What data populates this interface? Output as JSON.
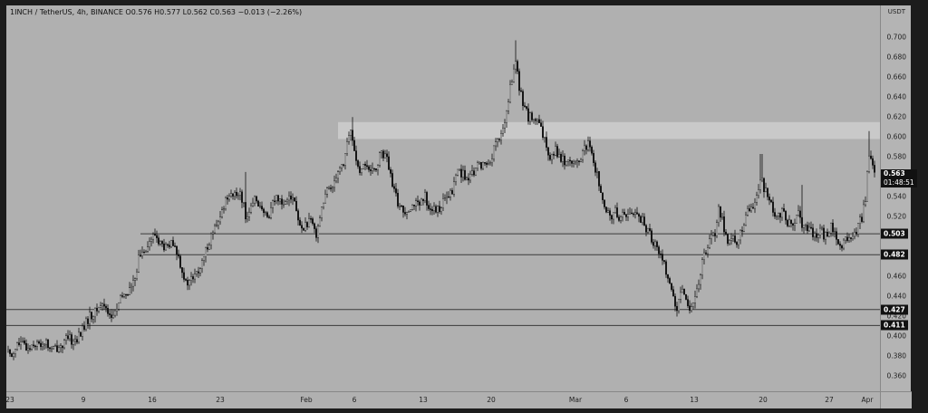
{
  "header": {
    "ticker_line": "1INCH / TetherUS, 4h, BINANCE  O0.576  H0.577  L0.562  C0.563  −0.013 (−2.26%)"
  },
  "chart_data": {
    "type": "candlestick",
    "currency": "USDT",
    "y_ticks": [
      "0.700",
      "0.680",
      "0.660",
      "0.640",
      "0.620",
      "0.600",
      "0.580",
      "0.560",
      "0.540",
      "0.520",
      "0.500",
      "0.480",
      "0.460",
      "0.440",
      "0.420",
      "0.400",
      "0.380",
      "0.360"
    ],
    "ylim": [
      0.345,
      0.732
    ],
    "x_ticks": [
      "23",
      "9",
      "16",
      "23",
      "Feb",
      "6",
      "13",
      "20",
      "Mar",
      "6",
      "13",
      "20",
      "27",
      "Apr"
    ],
    "price_path": [
      {
        "x": 0,
        "y": 0.385
      },
      {
        "x": 6,
        "y": 0.382
      },
      {
        "x": 12,
        "y": 0.392
      },
      {
        "x": 18,
        "y": 0.392
      },
      {
        "x": 24,
        "y": 0.388
      },
      {
        "x": 30,
        "y": 0.394
      },
      {
        "x": 36,
        "y": 0.391
      },
      {
        "x": 42,
        "y": 0.395
      },
      {
        "x": 50,
        "y": 0.386
      },
      {
        "x": 56,
        "y": 0.389
      },
      {
        "x": 62,
        "y": 0.392
      },
      {
        "x": 68,
        "y": 0.398
      },
      {
        "x": 74,
        "y": 0.395
      },
      {
        "x": 80,
        "y": 0.4
      },
      {
        "x": 86,
        "y": 0.41
      },
      {
        "x": 92,
        "y": 0.42
      },
      {
        "x": 98,
        "y": 0.424
      },
      {
        "x": 104,
        "y": 0.432
      },
      {
        "x": 110,
        "y": 0.43
      },
      {
        "x": 116,
        "y": 0.418
      },
      {
        "x": 122,
        "y": 0.428
      },
      {
        "x": 128,
        "y": 0.44
      },
      {
        "x": 134,
        "y": 0.445
      },
      {
        "x": 140,
        "y": 0.452
      },
      {
        "x": 146,
        "y": 0.478
      },
      {
        "x": 152,
        "y": 0.488
      },
      {
        "x": 158,
        "y": 0.495
      },
      {
        "x": 164,
        "y": 0.502
      },
      {
        "x": 170,
        "y": 0.493
      },
      {
        "x": 176,
        "y": 0.488
      },
      {
        "x": 182,
        "y": 0.492
      },
      {
        "x": 188,
        "y": 0.485
      },
      {
        "x": 194,
        "y": 0.468
      },
      {
        "x": 198,
        "y": 0.452
      },
      {
        "x": 204,
        "y": 0.457
      },
      {
        "x": 210,
        "y": 0.462
      },
      {
        "x": 216,
        "y": 0.472
      },
      {
        "x": 222,
        "y": 0.492
      },
      {
        "x": 228,
        "y": 0.505
      },
      {
        "x": 234,
        "y": 0.512
      },
      {
        "x": 240,
        "y": 0.532
      },
      {
        "x": 246,
        "y": 0.545
      },
      {
        "x": 252,
        "y": 0.54
      },
      {
        "x": 258,
        "y": 0.546
      },
      {
        "x": 264,
        "y": 0.522
      },
      {
        "x": 270,
        "y": 0.527
      },
      {
        "x": 276,
        "y": 0.54
      },
      {
        "x": 282,
        "y": 0.525
      },
      {
        "x": 288,
        "y": 0.518
      },
      {
        "x": 294,
        "y": 0.535
      },
      {
        "x": 300,
        "y": 0.54
      },
      {
        "x": 306,
        "y": 0.533
      },
      {
        "x": 312,
        "y": 0.545
      },
      {
        "x": 318,
        "y": 0.535
      },
      {
        "x": 324,
        "y": 0.508
      },
      {
        "x": 330,
        "y": 0.512
      },
      {
        "x": 336,
        "y": 0.514
      },
      {
        "x": 342,
        "y": 0.504
      },
      {
        "x": 348,
        "y": 0.53
      },
      {
        "x": 354,
        "y": 0.545
      },
      {
        "x": 360,
        "y": 0.552
      },
      {
        "x": 366,
        "y": 0.568
      },
      {
        "x": 372,
        "y": 0.573
      },
      {
        "x": 376,
        "y": 0.595
      },
      {
        "x": 380,
        "y": 0.605
      },
      {
        "x": 384,
        "y": 0.588
      },
      {
        "x": 390,
        "y": 0.56
      },
      {
        "x": 396,
        "y": 0.575
      },
      {
        "x": 402,
        "y": 0.562
      },
      {
        "x": 408,
        "y": 0.57
      },
      {
        "x": 414,
        "y": 0.585
      },
      {
        "x": 420,
        "y": 0.578
      },
      {
        "x": 426,
        "y": 0.55
      },
      {
        "x": 432,
        "y": 0.535
      },
      {
        "x": 438,
        "y": 0.525
      },
      {
        "x": 444,
        "y": 0.53
      },
      {
        "x": 450,
        "y": 0.534
      },
      {
        "x": 456,
        "y": 0.53
      },
      {
        "x": 462,
        "y": 0.54
      },
      {
        "x": 468,
        "y": 0.528
      },
      {
        "x": 474,
        "y": 0.525
      },
      {
        "x": 480,
        "y": 0.532
      },
      {
        "x": 486,
        "y": 0.538
      },
      {
        "x": 492,
        "y": 0.545
      },
      {
        "x": 498,
        "y": 0.568
      },
      {
        "x": 504,
        "y": 0.563
      },
      {
        "x": 510,
        "y": 0.555
      },
      {
        "x": 516,
        "y": 0.565
      },
      {
        "x": 522,
        "y": 0.573
      },
      {
        "x": 528,
        "y": 0.572
      },
      {
        "x": 534,
        "y": 0.576
      },
      {
        "x": 540,
        "y": 0.594
      },
      {
        "x": 546,
        "y": 0.6
      },
      {
        "x": 552,
        "y": 0.625
      },
      {
        "x": 558,
        "y": 0.66
      },
      {
        "x": 562,
        "y": 0.675
      },
      {
        "x": 566,
        "y": 0.648
      },
      {
        "x": 570,
        "y": 0.636
      },
      {
        "x": 576,
        "y": 0.62
      },
      {
        "x": 582,
        "y": 0.618
      },
      {
        "x": 588,
        "y": 0.612
      },
      {
        "x": 594,
        "y": 0.595
      },
      {
        "x": 600,
        "y": 0.582
      },
      {
        "x": 606,
        "y": 0.588
      },
      {
        "x": 612,
        "y": 0.578
      },
      {
        "x": 618,
        "y": 0.575
      },
      {
        "x": 624,
        "y": 0.578
      },
      {
        "x": 630,
        "y": 0.571
      },
      {
        "x": 636,
        "y": 0.585
      },
      {
        "x": 642,
        "y": 0.592
      },
      {
        "x": 648,
        "y": 0.575
      },
      {
        "x": 654,
        "y": 0.555
      },
      {
        "x": 660,
        "y": 0.525
      },
      {
        "x": 666,
        "y": 0.52
      },
      {
        "x": 672,
        "y": 0.525
      },
      {
        "x": 678,
        "y": 0.519
      },
      {
        "x": 684,
        "y": 0.524
      },
      {
        "x": 690,
        "y": 0.522
      },
      {
        "x": 696,
        "y": 0.525
      },
      {
        "x": 702,
        "y": 0.515
      },
      {
        "x": 708,
        "y": 0.505
      },
      {
        "x": 714,
        "y": 0.496
      },
      {
        "x": 720,
        "y": 0.485
      },
      {
        "x": 726,
        "y": 0.473
      },
      {
        "x": 732,
        "y": 0.455
      },
      {
        "x": 736,
        "y": 0.438
      },
      {
        "x": 740,
        "y": 0.425
      },
      {
        "x": 744,
        "y": 0.44
      },
      {
        "x": 748,
        "y": 0.445
      },
      {
        "x": 752,
        "y": 0.432
      },
      {
        "x": 756,
        "y": 0.43
      },
      {
        "x": 760,
        "y": 0.436
      },
      {
        "x": 764,
        "y": 0.455
      },
      {
        "x": 770,
        "y": 0.482
      },
      {
        "x": 776,
        "y": 0.5
      },
      {
        "x": 782,
        "y": 0.505
      },
      {
        "x": 786,
        "y": 0.53
      },
      {
        "x": 790,
        "y": 0.518
      },
      {
        "x": 796,
        "y": 0.492
      },
      {
        "x": 802,
        "y": 0.5
      },
      {
        "x": 808,
        "y": 0.495
      },
      {
        "x": 814,
        "y": 0.515
      },
      {
        "x": 820,
        "y": 0.528
      },
      {
        "x": 826,
        "y": 0.535
      },
      {
        "x": 832,
        "y": 0.558
      },
      {
        "x": 838,
        "y": 0.545
      },
      {
        "x": 844,
        "y": 0.53
      },
      {
        "x": 850,
        "y": 0.52
      },
      {
        "x": 856,
        "y": 0.525
      },
      {
        "x": 862,
        "y": 0.515
      },
      {
        "x": 868,
        "y": 0.508
      },
      {
        "x": 874,
        "y": 0.522
      },
      {
        "x": 880,
        "y": 0.51
      },
      {
        "x": 886,
        "y": 0.505
      },
      {
        "x": 892,
        "y": 0.502
      },
      {
        "x": 898,
        "y": 0.506
      },
      {
        "x": 904,
        "y": 0.5
      },
      {
        "x": 910,
        "y": 0.51
      },
      {
        "x": 916,
        "y": 0.502
      },
      {
        "x": 920,
        "y": 0.488
      },
      {
        "x": 926,
        "y": 0.495
      },
      {
        "x": 932,
        "y": 0.5
      },
      {
        "x": 938,
        "y": 0.505
      },
      {
        "x": 944,
        "y": 0.52
      },
      {
        "x": 948,
        "y": 0.54
      },
      {
        "x": 952,
        "y": 0.585
      },
      {
        "x": 956,
        "y": 0.568
      },
      {
        "x": 958,
        "y": 0.563
      }
    ],
    "spikes": [
      {
        "x": 264,
        "y": 0.565
      },
      {
        "x": 382,
        "y": 0.62
      },
      {
        "x": 562,
        "y": 0.697
      },
      {
        "x": 833,
        "y": 0.583
      },
      {
        "x": 878,
        "y": 0.552
      },
      {
        "x": 952,
        "y": 0.606
      }
    ],
    "levels": [
      {
        "label": "0.503",
        "price": 0.503,
        "start": 148
      },
      {
        "label": "0.482",
        "price": 0.482,
        "start": 148
      },
      {
        "label": "0.427",
        "price": 0.427,
        "start": 0
      },
      {
        "label": "0.411",
        "price": 0.411,
        "start": 0
      }
    ],
    "zone": {
      "low": 0.598,
      "high": 0.615,
      "start": 366
    },
    "current_price": {
      "label": "0.563",
      "countdown": "01:48:51",
      "price": 0.563
    }
  }
}
